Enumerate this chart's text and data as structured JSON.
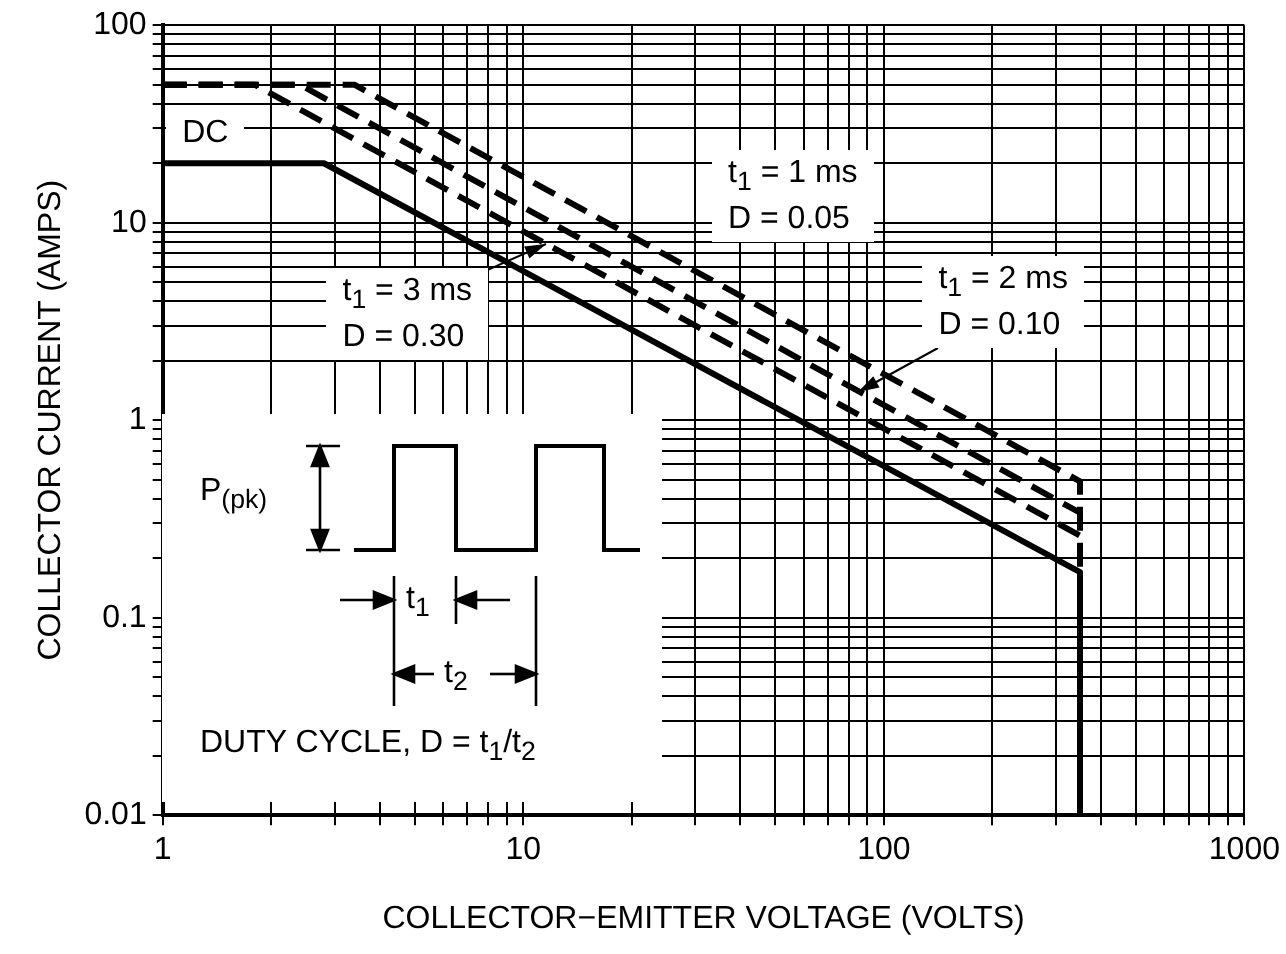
{
  "chart_data": {
    "type": "line",
    "xlabel": "COLLECTOR−EMITTER VOLTAGE (VOLTS)",
    "ylabel": "COLLECTOR CURRENT (AMPS)",
    "log": "xy",
    "grid": true,
    "xlim": [
      1,
      1000
    ],
    "ylim": [
      0.01,
      100
    ],
    "xticks": [
      1,
      {
        "value": 2,
        "label": null
      },
      {
        "value": 3,
        "label": null
      },
      {
        "value": 4,
        "label": null
      },
      {
        "value": 5,
        "label": null
      },
      {
        "value": 6,
        "label": null
      },
      {
        "value": 7,
        "label": null
      },
      {
        "value": 8,
        "label": null
      },
      {
        "value": 9,
        "label": null
      },
      10,
      {
        "value": 20,
        "label": null
      },
      {
        "value": 30,
        "label": null
      },
      {
        "value": 40,
        "label": null
      },
      {
        "value": 50,
        "label": null
      },
      {
        "value": 60,
        "label": null
      },
      {
        "value": 70,
        "label": null
      },
      {
        "value": 80,
        "label": null
      },
      {
        "value": 90,
        "label": null
      },
      100,
      {
        "value": 200,
        "label": null
      },
      {
        "value": 300,
        "label": null
      },
      {
        "value": 400,
        "label": null
      },
      {
        "value": 500,
        "label": null
      },
      {
        "value": 600,
        "label": null
      },
      {
        "value": 700,
        "label": null
      },
      {
        "value": 800,
        "label": null
      },
      {
        "value": 900,
        "label": null
      },
      1000
    ],
    "yticks": [
      0.01,
      {
        "value": 0.02,
        "label": null
      },
      {
        "value": 0.03,
        "label": null
      },
      {
        "value": 0.04,
        "label": null
      },
      {
        "value": 0.05,
        "label": null
      },
      {
        "value": 0.06,
        "label": null
      },
      {
        "value": 0.07,
        "label": null
      },
      {
        "value": 0.08,
        "label": null
      },
      {
        "value": 0.09,
        "label": null
      },
      0.1,
      {
        "value": 0.2,
        "label": null
      },
      {
        "value": 0.3,
        "label": null
      },
      {
        "value": 0.4,
        "label": null
      },
      {
        "value": 0.5,
        "label": null
      },
      {
        "value": 0.6,
        "label": null
      },
      {
        "value": 0.7,
        "label": null
      },
      {
        "value": 0.8,
        "label": null
      },
      {
        "value": 0.9,
        "label": null
      },
      1,
      {
        "value": 2,
        "label": null
      },
      {
        "value": 3,
        "label": null
      },
      {
        "value": 4,
        "label": null
      },
      {
        "value": 5,
        "label": null
      },
      {
        "value": 6,
        "label": null
      },
      {
        "value": 7,
        "label": null
      },
      {
        "value": 8,
        "label": null
      },
      {
        "value": 9,
        "label": null
      },
      10,
      {
        "value": 20,
        "label": null
      },
      {
        "value": 30,
        "label": null
      },
      {
        "value": 40,
        "label": null
      },
      {
        "value": 50,
        "label": null
      },
      {
        "value": 60,
        "label": null
      },
      {
        "value": 70,
        "label": null
      },
      {
        "value": 80,
        "label": null
      },
      {
        "value": 90,
        "label": null
      },
      100
    ],
    "series": [
      {
        "color": "#000000",
        "line_style": "solid",
        "x": [
          1,
          2.8,
          350,
          350
        ],
        "values": [
          20,
          20,
          0.17,
          0.01
        ]
      },
      {
        "color": "#000000",
        "line_style": "dashed",
        "x": [
          1,
          3.4,
          350,
          350
        ],
        "values": [
          50,
          50,
          0.49,
          0.17
        ]
      },
      {
        "color": "#000000",
        "line_style": "dashed",
        "x": [
          1,
          2.4,
          350
        ],
        "values": [
          50,
          50,
          0.34
        ]
      },
      {
        "color": "#000000",
        "line_style": "dashed",
        "x": [
          1,
          1.8,
          350
        ],
        "values": [
          50,
          50,
          0.26
        ]
      }
    ],
    "annotations": [
      {
        "text": "DC",
        "x": 1.5,
        "y": 20
      },
      "t$_{1}$ = 1 ms\nD = 0.05",
      {
        "text": "t$_{1}$ = 3 ms\nD = 0.30",
        "x": 11.6,
        "y": 7.8
      },
      {
        "text": "t$_{1}$ = 2 ms\nD = 0.10",
        "x": 85,
        "y": 1.4
      },
      "P$_{(pk)}$",
      "t$_{1}$",
      "t$_{2}$",
      "DUTY CYCLE, D = t$_{1}$/t$_{2}$"
    ]
  }
}
